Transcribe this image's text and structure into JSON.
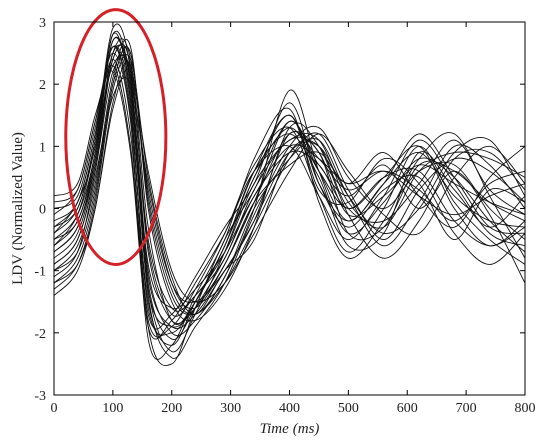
{
  "chart_data": {
    "type": "line",
    "title": "",
    "xlabel_main": "Time",
    "xlabel_unit": "(ms)",
    "ylabel": "LDV (Normalized Value)",
    "xlim": [
      0,
      800
    ],
    "ylim": [
      -3,
      3
    ],
    "xticks": [
      0,
      100,
      200,
      300,
      400,
      500,
      600,
      700,
      800
    ],
    "yticks": [
      -3,
      -2,
      -1,
      0,
      1,
      2,
      3
    ],
    "grid": false,
    "line_color": "#111111",
    "annotation": {
      "shape": "ellipse",
      "color": "#d42027",
      "center": [
        105,
        1.15
      ],
      "radius_x": 85,
      "radius_y": 2.05
    },
    "series": [
      {
        "x": [
          0,
          40,
          70,
          100,
          130,
          160,
          200,
          240,
          290,
          340,
          400,
          450,
          500,
          560,
          620,
          680,
          740,
          800
        ],
        "y": [
          -0.5,
          -0.2,
          0.9,
          2.8,
          2.0,
          -1.3,
          -1.9,
          -1.6,
          -0.9,
          0.1,
          1.4,
          0.6,
          -0.2,
          0.4,
          0.9,
          0.2,
          -0.2,
          -0.3
        ]
      },
      {
        "x": [
          0,
          40,
          70,
          100,
          130,
          160,
          200,
          240,
          290,
          340,
          400,
          450,
          500,
          560,
          620,
          680,
          740,
          800
        ],
        "y": [
          -0.9,
          -0.5,
          0.6,
          2.4,
          2.3,
          -0.6,
          -1.7,
          -1.4,
          -0.8,
          0.3,
          1.1,
          0.9,
          -0.4,
          -0.3,
          0.7,
          0.6,
          0.1,
          -0.2
        ]
      },
      {
        "x": [
          0,
          40,
          70,
          100,
          130,
          160,
          200,
          240,
          290,
          340,
          400,
          450,
          500,
          560,
          620,
          680,
          740,
          800
        ],
        "y": [
          -0.3,
          0.1,
          1.2,
          2.6,
          1.6,
          -1.6,
          -2.0,
          -1.5,
          -0.6,
          0.5,
          1.5,
          0.3,
          0.1,
          0.8,
          0.4,
          -0.5,
          0.3,
          0.1
        ]
      },
      {
        "x": [
          0,
          40,
          70,
          100,
          130,
          160,
          200,
          240,
          290,
          340,
          400,
          450,
          500,
          560,
          620,
          680,
          740,
          800
        ],
        "y": [
          -1.2,
          -0.8,
          0.2,
          2.0,
          2.5,
          0.2,
          -1.3,
          -1.7,
          -1.1,
          0.0,
          0.8,
          1.1,
          0.2,
          -0.6,
          0.1,
          1.0,
          0.7,
          0.0
        ]
      },
      {
        "x": [
          0,
          40,
          70,
          100,
          130,
          160,
          200,
          240,
          290,
          340,
          400,
          450,
          500,
          560,
          620,
          680,
          740,
          800
        ],
        "y": [
          0.2,
          0.4,
          1.5,
          2.2,
          0.9,
          -1.9,
          -1.8,
          -1.2,
          -0.4,
          0.6,
          1.0,
          0.2,
          -0.5,
          0.2,
          1.1,
          0.4,
          -0.4,
          -0.6
        ]
      },
      {
        "x": [
          0,
          40,
          70,
          100,
          130,
          160,
          200,
          240,
          290,
          340,
          400,
          450,
          500,
          560,
          620,
          680,
          740,
          800
        ],
        "y": [
          -0.7,
          -0.3,
          0.8,
          2.7,
          1.9,
          -1.1,
          -1.9,
          -1.7,
          -1.0,
          -0.2,
          1.2,
          0.8,
          0.3,
          0.6,
          0.3,
          -0.2,
          0.4,
          0.6
        ]
      },
      {
        "x": [
          0,
          40,
          70,
          100,
          130,
          160,
          200,
          240,
          290,
          340,
          400,
          450,
          500,
          560,
          620,
          680,
          740,
          800
        ],
        "y": [
          -1.4,
          -1.0,
          0.0,
          1.6,
          2.2,
          0.6,
          -1.0,
          -1.5,
          -1.2,
          -0.4,
          0.6,
          1.2,
          0.6,
          -0.1,
          -0.4,
          0.5,
          1.0,
          0.4
        ]
      },
      {
        "x": [
          0,
          40,
          70,
          100,
          130,
          160,
          200,
          240,
          290,
          340,
          400,
          450,
          500,
          560,
          620,
          680,
          740,
          800
        ],
        "y": [
          -0.1,
          0.3,
          1.4,
          2.5,
          1.4,
          -2.1,
          -2.2,
          -1.4,
          -0.5,
          0.8,
          1.6,
          0.1,
          -0.8,
          -0.2,
          0.8,
          1.2,
          0.2,
          -0.8
        ]
      },
      {
        "x": [
          0,
          40,
          70,
          100,
          130,
          160,
          200,
          240,
          290,
          340,
          400,
          450,
          500,
          560,
          620,
          680,
          740,
          800
        ],
        "y": [
          -0.6,
          -0.1,
          1.0,
          2.3,
          2.1,
          -0.9,
          -1.6,
          -1.3,
          -0.7,
          0.2,
          0.9,
          0.7,
          0.0,
          0.5,
          1.0,
          0.0,
          -0.6,
          -0.2
        ]
      },
      {
        "x": [
          0,
          40,
          70,
          100,
          130,
          160,
          200,
          240,
          290,
          340,
          400,
          450,
          500,
          560,
          620,
          680,
          740,
          800
        ],
        "y": [
          -1.0,
          -0.6,
          0.4,
          2.1,
          2.6,
          0.0,
          -1.5,
          -1.8,
          -1.3,
          -0.3,
          1.3,
          1.0,
          -0.1,
          -0.8,
          -0.2,
          0.8,
          0.9,
          0.3
        ]
      },
      {
        "x": [
          0,
          40,
          70,
          100,
          130,
          160,
          200,
          240,
          290,
          340,
          400,
          450,
          500,
          560,
          620,
          680,
          740,
          800
        ],
        "y": [
          0.0,
          0.2,
          1.3,
          2.4,
          1.2,
          -1.7,
          -1.7,
          -1.1,
          -0.3,
          0.4,
          1.7,
          0.4,
          -0.3,
          0.3,
          0.5,
          -0.4,
          -0.9,
          -0.4
        ]
      },
      {
        "x": [
          0,
          40,
          70,
          100,
          130,
          160,
          200,
          240,
          290,
          340,
          400,
          450,
          500,
          560,
          620,
          680,
          740,
          800
        ],
        "y": [
          -0.4,
          0.0,
          1.1,
          2.9,
          2.2,
          -1.4,
          -2.4,
          -1.9,
          -1.2,
          -0.1,
          1.0,
          1.3,
          0.5,
          0.0,
          0.6,
          0.7,
          0.0,
          -0.5
        ]
      },
      {
        "x": [
          0,
          40,
          70,
          100,
          130,
          160,
          200,
          240,
          290,
          340,
          400,
          450,
          500,
          560,
          620,
          680,
          740,
          800
        ],
        "y": [
          -1.1,
          -0.7,
          0.5,
          1.8,
          2.0,
          0.4,
          -1.2,
          -1.6,
          -0.9,
          0.1,
          0.7,
          0.9,
          0.4,
          0.9,
          0.2,
          -0.3,
          0.5,
          1.0
        ]
      },
      {
        "x": [
          0,
          40,
          70,
          100,
          130,
          160,
          200,
          240,
          290,
          340,
          400,
          450,
          500,
          560,
          620,
          680,
          740,
          800
        ],
        "y": [
          -0.8,
          -0.4,
          0.7,
          2.5,
          2.4,
          -0.3,
          -1.8,
          -1.5,
          -0.6,
          0.6,
          1.2,
          0.5,
          -0.6,
          -0.4,
          0.9,
          0.3,
          -0.3,
          0.2
        ]
      },
      {
        "x": [
          0,
          40,
          70,
          100,
          130,
          160,
          200,
          240,
          290,
          340,
          400,
          450,
          500,
          560,
          620,
          680,
          740,
          800
        ],
        "y": [
          -0.2,
          0.1,
          1.2,
          2.6,
          1.7,
          -1.9,
          -2.5,
          -1.6,
          -0.5,
          0.3,
          1.4,
          0.7,
          0.2,
          0.7,
          0.0,
          0.6,
          -0.1,
          -1.2
        ]
      },
      {
        "x": [
          0,
          40,
          70,
          100,
          130,
          160,
          200,
          240,
          290,
          340,
          400,
          450,
          500,
          560,
          620,
          680,
          740,
          800
        ],
        "y": [
          -1.3,
          -0.9,
          0.1,
          1.9,
          2.4,
          0.5,
          -1.1,
          -1.7,
          -1.0,
          -0.5,
          0.9,
          1.0,
          0.0,
          -0.2,
          0.4,
          1.1,
          0.3,
          -0.1
        ]
      },
      {
        "x": [
          0,
          40,
          70,
          100,
          130,
          160,
          200,
          240,
          290,
          340,
          400,
          450,
          500,
          560,
          620,
          680,
          740,
          800
        ],
        "y": [
          -0.5,
          -0.1,
          0.9,
          2.7,
          2.0,
          -1.0,
          -2.0,
          -1.8,
          -1.1,
          0.0,
          1.9,
          0.6,
          -0.4,
          0.1,
          0.8,
          0.5,
          -0.2,
          -0.7
        ]
      },
      {
        "x": [
          0,
          40,
          70,
          100,
          130,
          160,
          200,
          240,
          290,
          340,
          400,
          450,
          500,
          560,
          620,
          680,
          740,
          800
        ],
        "y": [
          -0.9,
          -0.5,
          0.6,
          2.2,
          2.2,
          -0.5,
          -1.6,
          -1.4,
          -0.7,
          0.4,
          1.1,
          1.1,
          0.1,
          -0.3,
          0.6,
          0.9,
          0.8,
          0.5
        ]
      },
      {
        "x": [
          0,
          40,
          70,
          100,
          130,
          160,
          200,
          240,
          290,
          340,
          400,
          450,
          500,
          560,
          620,
          680,
          740,
          800
        ],
        "y": [
          0.1,
          0.3,
          1.4,
          2.3,
          1.0,
          -1.8,
          -1.9,
          -1.3,
          -0.4,
          0.7,
          1.3,
          0.2,
          -0.7,
          0.0,
          1.0,
          0.1,
          -0.5,
          -0.9
        ]
      },
      {
        "x": [
          0,
          40,
          70,
          100,
          130,
          160,
          200,
          240,
          290,
          340,
          400,
          450,
          500,
          560,
          620,
          680,
          740,
          800
        ],
        "y": [
          -0.6,
          -0.2,
          0.8,
          2.5,
          2.1,
          -1.2,
          -2.1,
          -1.6,
          -0.8,
          0.2,
          1.0,
          0.8,
          0.4,
          0.6,
          0.2,
          -0.1,
          0.2,
          0.4
        ]
      },
      {
        "x": [
          0,
          40,
          70,
          100,
          130,
          160,
          200,
          240,
          290,
          340,
          400,
          450,
          500,
          560,
          620,
          680,
          740,
          800
        ],
        "y": [
          -1.0,
          -0.7,
          0.3,
          2.0,
          2.5,
          0.1,
          -1.4,
          -1.7,
          -1.2,
          -0.3,
          0.8,
          1.2,
          0.3,
          -0.5,
          0.3,
          0.8,
          0.6,
          0.1
        ]
      },
      {
        "x": [
          0,
          40,
          70,
          100,
          130,
          160,
          200,
          240,
          290,
          340,
          400,
          450,
          500,
          560,
          620,
          680,
          740,
          800
        ],
        "y": [
          -0.3,
          0.0,
          1.1,
          2.6,
          1.5,
          -1.5,
          -2.2,
          -1.5,
          -0.6,
          0.6,
          1.5,
          0.4,
          -0.2,
          0.4,
          1.2,
          0.5,
          -0.3,
          -0.4
        ]
      },
      {
        "x": [
          0,
          40,
          70,
          100,
          130,
          160,
          200,
          240,
          290,
          340,
          400,
          450,
          500,
          560,
          620,
          680,
          740,
          800
        ],
        "y": [
          -0.7,
          -0.3,
          0.7,
          2.4,
          2.3,
          -0.7,
          -1.8,
          -1.6,
          -0.9,
          0.1,
          1.2,
          0.9,
          -0.1,
          0.2,
          0.7,
          0.4,
          0.1,
          -0.1
        ]
      },
      {
        "x": [
          0,
          40,
          70,
          100,
          130,
          160,
          200,
          240,
          290,
          340,
          400,
          450,
          500,
          560,
          620,
          680,
          740,
          800
        ],
        "y": [
          -1.2,
          -0.9,
          0.0,
          1.7,
          2.3,
          0.3,
          -1.2,
          -1.5,
          -1.0,
          -0.2,
          0.9,
          1.0,
          0.2,
          -0.4,
          0.0,
          0.9,
          1.1,
          0.2
        ]
      },
      {
        "x": [
          0,
          40,
          70,
          100,
          130,
          160,
          200,
          240,
          290,
          340,
          400,
          450,
          500,
          560,
          620,
          680,
          740,
          800
        ],
        "y": [
          -0.4,
          0.1,
          1.0,
          2.8,
          1.8,
          -1.3,
          -2.3,
          -1.7,
          -0.7,
          0.5,
          1.3,
          0.6,
          0.0,
          0.5,
          0.6,
          -0.2,
          -0.6,
          -0.3
        ]
      }
    ]
  }
}
